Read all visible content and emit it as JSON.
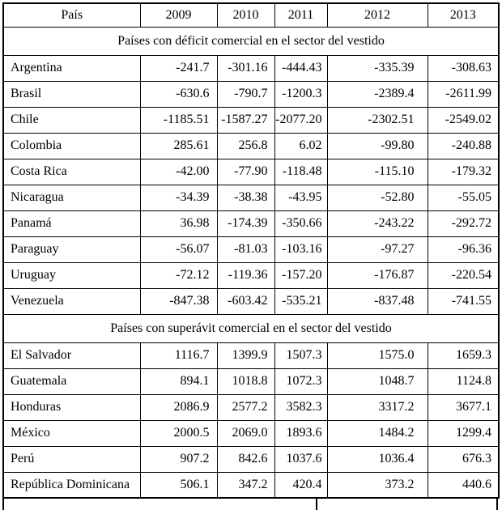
{
  "colors": {
    "border": "#000000",
    "text": "#000000",
    "background": "#ffffff"
  },
  "table": {
    "header": {
      "country_col": "País",
      "years": [
        "2009",
        "2010",
        "2011",
        "2012",
        "2013"
      ]
    },
    "sections": [
      {
        "title": "Países con déficit comercial en el sector del vestido",
        "rows": [
          {
            "country": "Argentina",
            "values": [
              "-241.7",
              "-301.16",
              "-444.43",
              "-335.39",
              "-308.63"
            ]
          },
          {
            "country": "Brasil",
            "values": [
              "-630.6",
              "-790.7",
              "-1200.3",
              "-2389.4",
              "-2611.99"
            ]
          },
          {
            "country": "Chile",
            "values": [
              "-1185.51",
              "-1587.27",
              "-2077.20",
              "-2302.51",
              "-2549.02"
            ]
          },
          {
            "country": "Colombia",
            "values": [
              "285.61",
              "256.8",
              "6.02",
              "-99.80",
              "-240.88"
            ]
          },
          {
            "country": "Costa Rica",
            "values": [
              "-42.00",
              "-77.90",
              "-118.48",
              "-115.10",
              "-179.32"
            ]
          },
          {
            "country": "Nicaragua",
            "values": [
              "-34.39",
              "-38.38",
              "-43.95",
              "-52.80",
              "-55.05"
            ]
          },
          {
            "country": "Panamá",
            "values": [
              "36.98",
              "-174.39",
              "-350.66",
              "-243.22",
              "-292.72"
            ]
          },
          {
            "country": "Paraguay",
            "values": [
              "-56.07",
              "-81.03",
              "-103.16",
              "-97.27",
              "-96.36"
            ]
          },
          {
            "country": "Uruguay",
            "values": [
              "-72.12",
              "-119.36",
              "-157.20",
              "-176.87",
              "-220.54"
            ]
          },
          {
            "country": "Venezuela",
            "values": [
              "-847.38",
              "-603.42",
              "-535.21",
              "-837.48",
              "-741.55"
            ]
          }
        ]
      },
      {
        "title": "Países con superávit comercial en el sector del vestido",
        "rows": [
          {
            "country": "El Salvador",
            "values": [
              "1116.7",
              "1399.9",
              "1507.3",
              "1575.0",
              "1659.3"
            ]
          },
          {
            "country": "Guatemala",
            "values": [
              "894.1",
              "1018.8",
              "1072.3",
              "1048.7",
              "1124.8"
            ]
          },
          {
            "country": "Honduras",
            "values": [
              "2086.9",
              "2577.2",
              "3582.3",
              "3317.2",
              "3677.1"
            ]
          },
          {
            "country": "México",
            "values": [
              "2000.5",
              "2069.0",
              "1893.6",
              "1484.2",
              "1299.4"
            ]
          },
          {
            "country": "Perú",
            "values": [
              "907.2",
              "842.6",
              "1037.6",
              "1036.4",
              "676.3"
            ]
          },
          {
            "country": "República Dominicana",
            "values": [
              "506.1",
              "347.2",
              "420.4",
              "373.2",
              "440.6"
            ]
          }
        ]
      }
    ]
  }
}
